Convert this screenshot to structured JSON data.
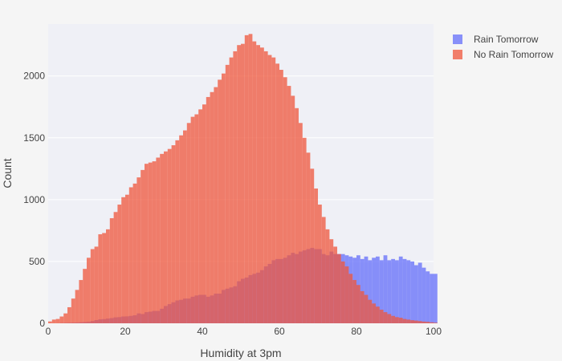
{
  "chart_data": {
    "type": "bar",
    "subtype": "overlaid-histogram",
    "title": "",
    "xlabel": "Humidity at 3pm",
    "ylabel": "Count",
    "xlim": [
      0,
      100
    ],
    "ylim": [
      0,
      2420
    ],
    "x_ticks": [
      0,
      20,
      40,
      60,
      80,
      100
    ],
    "y_ticks": [
      0,
      500,
      1000,
      1500,
      2000
    ],
    "bin_width": 1,
    "grid": true,
    "legend_position": "top-right",
    "series": [
      {
        "name": "Rain Tomorrow",
        "color": "#636efa",
        "opacity": 0.75,
        "values": [
          0,
          0,
          0,
          2,
          3,
          4,
          5,
          6,
          8,
          10,
          12,
          18,
          26,
          32,
          34,
          38,
          42,
          48,
          50,
          55,
          56,
          60,
          65,
          80,
          75,
          90,
          94,
          100,
          100,
          118,
          140,
          155,
          170,
          185,
          190,
          200,
          200,
          215,
          225,
          230,
          230,
          215,
          225,
          240,
          240,
          270,
          280,
          290,
          300,
          340,
          360,
          370,
          390,
          400,
          410,
          430,
          460,
          480,
          510,
          520,
          520,
          530,
          550,
          570,
          560,
          580,
          590,
          600,
          610,
          600,
          600,
          560,
          550,
          580,
          560,
          560,
          560,
          550,
          540,
          530,
          550,
          520,
          540,
          510,
          530,
          540,
          510,
          550,
          510,
          520,
          510,
          540,
          520,
          510,
          500,
          470,
          490,
          450,
          420,
          400,
          400
        ]
      },
      {
        "name": "No Rain Tomorrow",
        "color": "#ef553b",
        "opacity": 0.75,
        "values": [
          15,
          30,
          35,
          55,
          80,
          130,
          200,
          270,
          350,
          440,
          530,
          600,
          620,
          720,
          730,
          760,
          850,
          900,
          960,
          1020,
          1040,
          1100,
          1130,
          1180,
          1240,
          1290,
          1300,
          1310,
          1340,
          1370,
          1390,
          1410,
          1440,
          1480,
          1520,
          1560,
          1620,
          1670,
          1690,
          1730,
          1770,
          1830,
          1870,
          1910,
          1970,
          2020,
          2090,
          2150,
          2200,
          2250,
          2260,
          2330,
          2340,
          2280,
          2250,
          2230,
          2200,
          2170,
          2150,
          2100,
          2050,
          1990,
          1920,
          1840,
          1740,
          1620,
          1500,
          1380,
          1250,
          1090,
          960,
          860,
          760,
          680,
          620,
          560,
          500,
          460,
          400,
          350,
          310,
          260,
          230,
          190,
          160,
          135,
          110,
          90,
          75,
          60,
          50,
          45,
          35,
          30,
          25,
          22,
          18,
          14,
          12,
          8,
          5
        ]
      }
    ]
  }
}
